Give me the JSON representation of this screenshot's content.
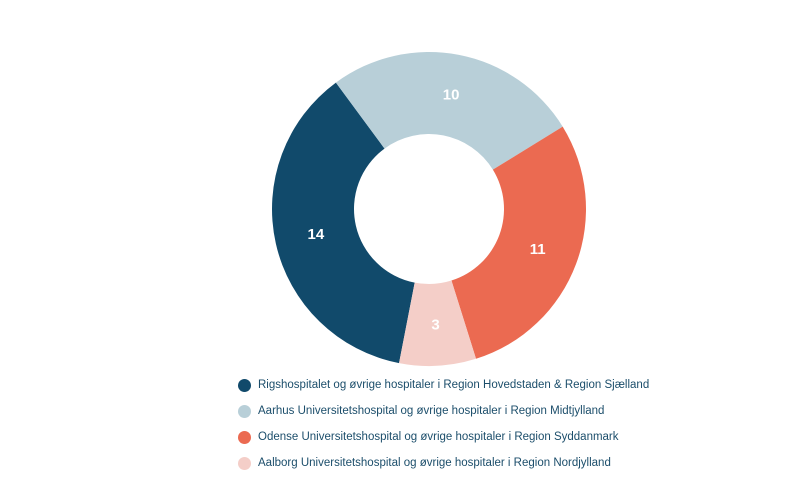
{
  "chart_data": {
    "type": "pie",
    "subtype": "donut",
    "title": "",
    "segments": [
      {
        "label": "Rigshospitalet og øvrige hospitaler i Region Hovedstaden & Region Sjælland",
        "value": 14,
        "color": "#114a6b"
      },
      {
        "label": "Aarhus Universitetshospital og øvrige hospitaler i Region Midtjylland",
        "value": 10,
        "color": "#b8cfd8"
      },
      {
        "label": "Odense Universitetshospital og øvrige hospitaler i Region Syddanmark",
        "value": 11,
        "color": "#eb6a51"
      },
      {
        "label": "Aalborg Universitetshospital og øvrige hospitaler i Region Nordjylland",
        "value": 3,
        "color": "#f4cec8"
      }
    ],
    "total": 38,
    "value_label_color": "#ffffff",
    "legend_position": "bottom",
    "legend_text_color": "#1c4e6b",
    "start_angle_deg": 191,
    "inner_radius_ratio": 0.478,
    "grid": false
  }
}
